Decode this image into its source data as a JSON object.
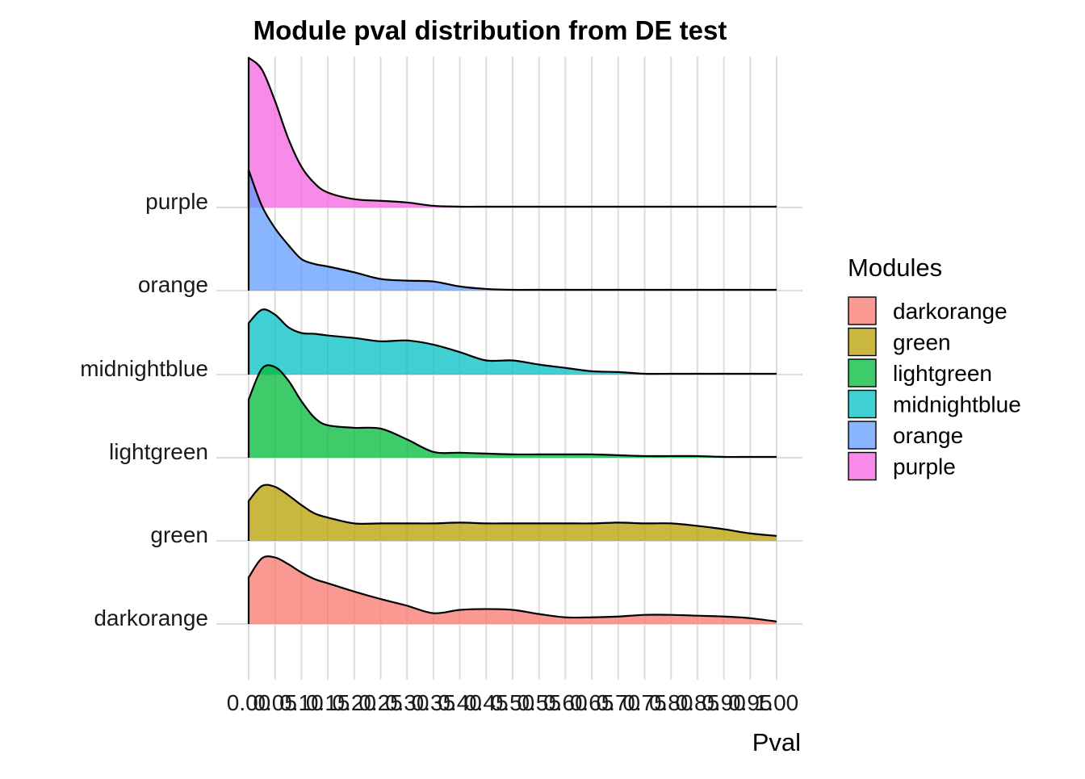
{
  "chart_data": {
    "type": "ridgeline",
    "title": "Module pval distribution from DE test",
    "xlabel": "Pval",
    "ylabel": "",
    "xlim": [
      0,
      1
    ],
    "x_ticks": [
      0.0,
      0.05,
      0.1,
      0.15,
      0.2,
      0.25,
      0.3,
      0.35,
      0.4,
      0.45,
      0.5,
      0.55,
      0.6,
      0.65,
      0.7,
      0.75,
      0.8,
      0.85,
      0.9,
      0.95,
      1.0
    ],
    "x_tick_labels": [
      "0.00",
      "0.05",
      "0.10",
      "0.15",
      "0.20",
      "0.25",
      "0.30",
      "0.35",
      "0.40",
      "0.45",
      "0.50",
      "0.55",
      "0.60",
      "0.65",
      "0.70",
      "0.75",
      "0.80",
      "0.85",
      "0.90",
      "0.95",
      "1.00"
    ],
    "categories": [
      "darkorange",
      "green",
      "lightgreen",
      "midnightblue",
      "orange",
      "purple"
    ],
    "grid": true,
    "legend": {
      "title": "Modules",
      "placement": "right",
      "entries": [
        "darkorange",
        "green",
        "lightgreen",
        "midnightblue",
        "orange",
        "purple"
      ]
    },
    "colors": {
      "darkorange": "#F8766D",
      "green": "#B79F00",
      "lightgreen": "#00BA38",
      "midnightblue": "#00BFC4",
      "orange": "#619CFF",
      "purple": "#F564E3"
    },
    "x": [
      0.0,
      0.025,
      0.05,
      0.075,
      0.1,
      0.125,
      0.15,
      0.2,
      0.25,
      0.3,
      0.35,
      0.4,
      0.45,
      0.5,
      0.55,
      0.6,
      0.65,
      0.7,
      0.75,
      0.8,
      0.85,
      0.9,
      0.95,
      1.0
    ],
    "series": [
      {
        "name": "darkorange",
        "values": [
          0.56,
          0.79,
          0.8,
          0.72,
          0.62,
          0.54,
          0.49,
          0.39,
          0.3,
          0.22,
          0.13,
          0.17,
          0.18,
          0.17,
          0.12,
          0.08,
          0.08,
          0.09,
          0.11,
          0.11,
          0.1,
          0.09,
          0.07,
          0.03
        ]
      },
      {
        "name": "green",
        "values": [
          0.48,
          0.66,
          0.65,
          0.55,
          0.43,
          0.33,
          0.28,
          0.21,
          0.21,
          0.21,
          0.21,
          0.22,
          0.21,
          0.21,
          0.21,
          0.21,
          0.21,
          0.22,
          0.21,
          0.21,
          0.18,
          0.14,
          0.09,
          0.06
        ]
      },
      {
        "name": "lightgreen",
        "values": [
          0.7,
          1.07,
          1.09,
          0.93,
          0.68,
          0.48,
          0.39,
          0.36,
          0.35,
          0.22,
          0.07,
          0.06,
          0.05,
          0.04,
          0.04,
          0.04,
          0.04,
          0.03,
          0.02,
          0.02,
          0.02,
          0.01,
          0.01,
          0.01
        ]
      },
      {
        "name": "midnightblue",
        "values": [
          0.62,
          0.78,
          0.72,
          0.57,
          0.5,
          0.49,
          0.47,
          0.44,
          0.4,
          0.41,
          0.36,
          0.27,
          0.17,
          0.17,
          0.12,
          0.08,
          0.04,
          0.03,
          0.01,
          0.01,
          0.01,
          0.01,
          0.01,
          0.01
        ]
      },
      {
        "name": "orange",
        "values": [
          1.45,
          1.02,
          0.75,
          0.55,
          0.38,
          0.32,
          0.29,
          0.22,
          0.14,
          0.12,
          0.11,
          0.05,
          0.02,
          0.01,
          0.01,
          0.01,
          0.01,
          0.01,
          0.01,
          0.01,
          0.01,
          0.01,
          0.01,
          0.01
        ]
      },
      {
        "name": "purple",
        "values": [
          1.8,
          1.66,
          1.28,
          0.83,
          0.49,
          0.29,
          0.18,
          0.1,
          0.08,
          0.06,
          0.02,
          0.01,
          0.01,
          0.01,
          0.01,
          0.01,
          0.01,
          0.01,
          0.01,
          0.01,
          0.01,
          0.01,
          0.01,
          0.01
        ]
      }
    ]
  }
}
